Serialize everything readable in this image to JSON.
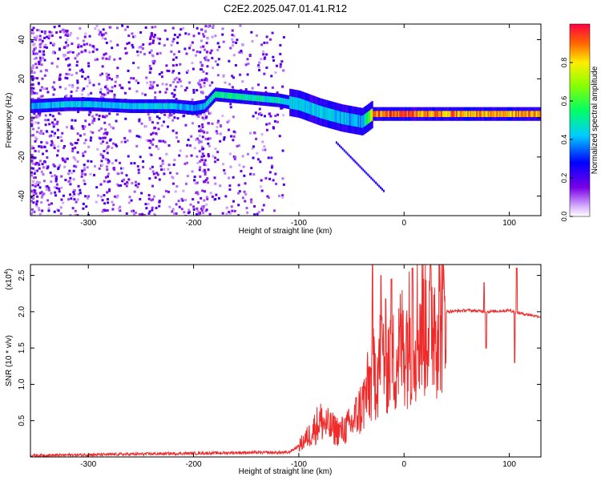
{
  "figure": {
    "title": "C2E2.2025.047.01.41.R12"
  },
  "colors": {
    "background": "#ffffff",
    "axis": "#000000",
    "snr_line": "#ee2a2a"
  },
  "chart_data": [
    {
      "type": "heatmap",
      "xlabel": "Height of straight line (km)",
      "ylabel": "Frequency (Hz)",
      "xlim": [
        -355,
        130
      ],
      "ylim": [
        -50,
        48
      ],
      "xticks": [
        -300,
        -200,
        -100,
        0,
        100
      ],
      "yticks": [
        -40,
        -20,
        0,
        20,
        40
      ],
      "colorbar": {
        "label": "Normalized spectral amplitude",
        "range": [
          0.0,
          1.0
        ],
        "ticks": [
          0.0,
          0.2,
          0.4,
          0.6,
          0.8
        ],
        "colormap": "rainbow (white-violet-blue-cyan-green-yellow-red)"
      },
      "ridge": {
        "description": "Dominant Doppler frequency ridge",
        "x": [
          -355,
          -320,
          -300,
          -260,
          -220,
          -200,
          -190,
          -180,
          -160,
          -140,
          -120,
          -100,
          -80,
          -60,
          -40,
          -30,
          -20,
          0,
          50,
          130
        ],
        "freq": [
          6,
          7,
          7,
          6,
          6,
          5,
          6,
          12,
          11,
          10,
          9,
          7,
          3,
          0,
          -2,
          2,
          2,
          2,
          2,
          2
        ],
        "amplitude": [
          0.4,
          0.45,
          0.45,
          0.45,
          0.45,
          0.4,
          0.45,
          0.55,
          0.55,
          0.5,
          0.5,
          0.45,
          0.45,
          0.45,
          0.4,
          0.9,
          0.95,
          0.95,
          0.9,
          0.9
        ]
      },
      "grid": false
    },
    {
      "type": "line",
      "xlabel": "Height of straight line (km)",
      "ylabel": "SNR (10 * v/v)",
      "y_multiplier_label": "(x10",
      "y_multiplier_exp": "4",
      "y_multiplier_close": ")",
      "xlim": [
        -355,
        130
      ],
      "ylim": [
        0.0,
        2.65
      ],
      "xticks": [
        -300,
        -200,
        -100,
        0,
        100
      ],
      "yticks": [
        0.5,
        1.0,
        1.5,
        2.0,
        2.5
      ],
      "ytick_labels": [
        "0.5",
        "1.0",
        "1.5",
        "2.0",
        "2.5"
      ],
      "series": [
        {
          "x": [
            -355,
            -300,
            -250,
            -200,
            -150,
            -110,
            -100,
            -90,
            -80,
            -70,
            -60,
            -50,
            -40,
            -30,
            -20,
            -10,
            0,
            10,
            20,
            30,
            40,
            60,
            80,
            100,
            110,
            130
          ],
          "y": [
            0.02,
            0.03,
            0.04,
            0.05,
            0.06,
            0.06,
            0.15,
            0.3,
            0.5,
            0.4,
            0.35,
            0.45,
            0.7,
            1.1,
            1.4,
            1.3,
            1.6,
            1.75,
            1.9,
            1.95,
            2.0,
            2.02,
            2.0,
            2.02,
            1.98,
            1.93
          ],
          "spikes": [
            {
              "x": -30,
              "y": 2.65
            },
            {
              "x": -22,
              "y": 2.5
            },
            {
              "x": -12,
              "y": 2.45
            },
            {
              "x": 8,
              "y": 2.6
            },
            {
              "x": 76,
              "y": 2.4
            },
            {
              "x": 78,
              "y": 1.5
            },
            {
              "x": 105,
              "y": 1.3
            },
            {
              "x": 107,
              "y": 2.6
            }
          ]
        }
      ],
      "grid": false
    }
  ]
}
